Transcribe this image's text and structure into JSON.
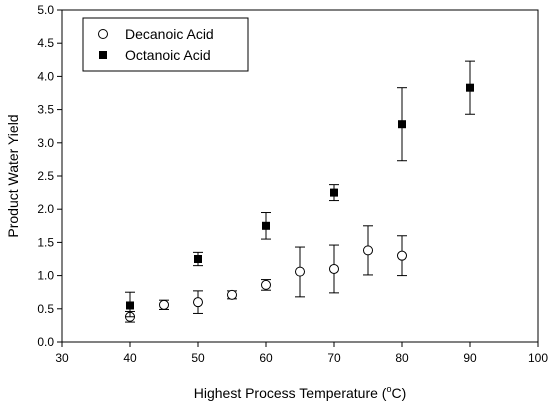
{
  "chart_data": {
    "type": "scatter",
    "title": "",
    "xlabel": "Highest Process Temperature (",
    "xlabel_sup": "o",
    "xlabel_suffix": "C)",
    "ylabel": "Product Water Yield",
    "xlim": [
      30,
      100
    ],
    "ylim": [
      0,
      5
    ],
    "x_ticks": [
      30,
      40,
      50,
      60,
      70,
      80,
      90,
      100
    ],
    "y_ticks": [
      "0.0",
      "0.5",
      "1.0",
      "1.5",
      "2.0",
      "2.5",
      "3.0",
      "3.5",
      "4.0",
      "4.5",
      "5.0"
    ],
    "grid": false,
    "legend_position": "top-left",
    "series": [
      {
        "name": "Decanoic Acid",
        "marker": "open-circle",
        "color": "#000000",
        "points": [
          {
            "x": 40,
            "y": 0.38,
            "err_low": 0.3,
            "err_high": 0.46
          },
          {
            "x": 45,
            "y": 0.56,
            "err_low": 0.49,
            "err_high": 0.63
          },
          {
            "x": 50,
            "y": 0.6,
            "err_low": 0.43,
            "err_high": 0.77
          },
          {
            "x": 55,
            "y": 0.71,
            "err_low": 0.65,
            "err_high": 0.77
          },
          {
            "x": 60,
            "y": 0.86,
            "err_low": 0.78,
            "err_high": 0.94
          },
          {
            "x": 65,
            "y": 1.06,
            "err_low": 0.68,
            "err_high": 1.43
          },
          {
            "x": 70,
            "y": 1.1,
            "err_low": 0.74,
            "err_high": 1.46
          },
          {
            "x": 75,
            "y": 1.38,
            "err_low": 1.01,
            "err_high": 1.75
          },
          {
            "x": 80,
            "y": 1.3,
            "err_low": 1.0,
            "err_high": 1.6
          }
        ]
      },
      {
        "name": "Octanoic Acid",
        "marker": "filled-square",
        "color": "#000000",
        "points": [
          {
            "x": 40,
            "y": 0.55,
            "err_low": 0.38,
            "err_high": 0.75
          },
          {
            "x": 50,
            "y": 1.25,
            "err_low": 1.15,
            "err_high": 1.35
          },
          {
            "x": 60,
            "y": 1.75,
            "err_low": 1.55,
            "err_high": 1.95
          },
          {
            "x": 70,
            "y": 2.25,
            "err_low": 2.13,
            "err_high": 2.37
          },
          {
            "x": 80,
            "y": 3.28,
            "err_low": 2.73,
            "err_high": 3.83
          },
          {
            "x": 90,
            "y": 3.83,
            "err_low": 3.43,
            "err_high": 4.23
          }
        ]
      }
    ]
  }
}
